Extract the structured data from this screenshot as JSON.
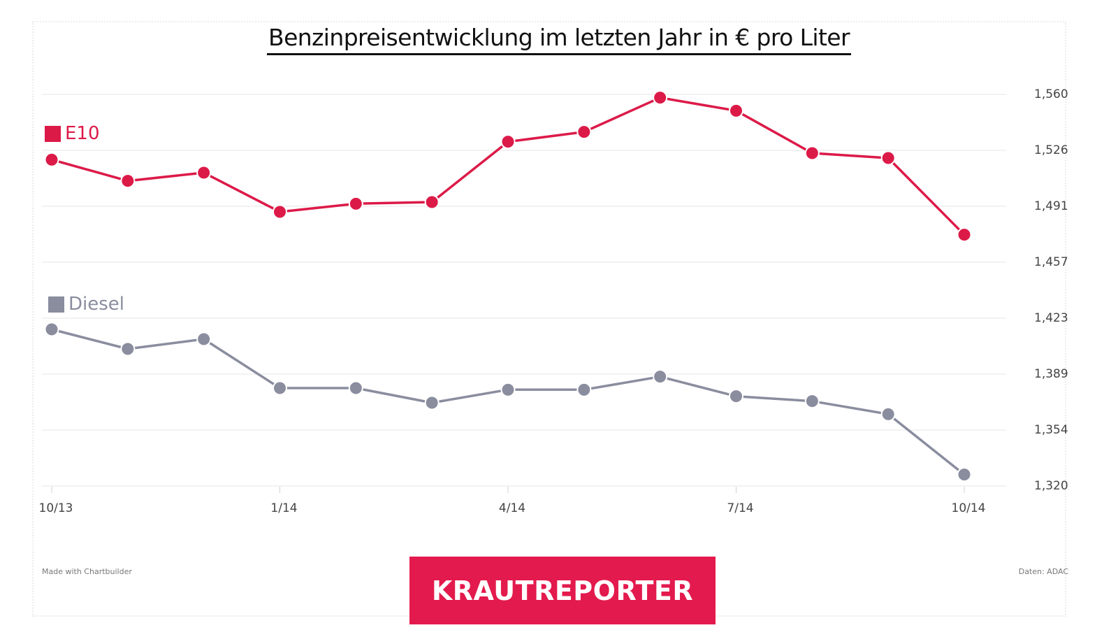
{
  "title": "Benzinpreisentwicklung im letzten Jahr in € pro Liter",
  "footer": {
    "made_with": "Made with Chartbuilder",
    "source": "Daten: ADAC",
    "brand": "KRAUTREPORTER"
  },
  "colors": {
    "e10": "#dc1a48",
    "diesel": "#8a8d9e",
    "brand_bg": "#e31a4d",
    "grid": "#e4e4e4",
    "axis_text": "#444444"
  },
  "chart_data": {
    "type": "line",
    "title": "Benzinpreisentwicklung im letzten Jahr in € pro Liter",
    "xlabel": "",
    "ylabel": "",
    "x_ticks": [
      "10/13",
      "1/14",
      "4/14",
      "7/14",
      "10/14"
    ],
    "y_ticks": [
      "1,560",
      "1,526",
      "1,491",
      "1,457",
      "1,423",
      "1,389",
      "1,354",
      "1,320"
    ],
    "ylim": [
      1.32,
      1.56
    ],
    "y_axis_side": "right",
    "grid": true,
    "legend": "inline-left",
    "x": [
      "2013-10",
      "2013-11",
      "2013-12",
      "2014-01",
      "2014-02",
      "2014-03",
      "2014-04",
      "2014-05",
      "2014-06",
      "2014-07",
      "2014-08",
      "2014-09",
      "2014-10"
    ],
    "series": [
      {
        "name": "E10",
        "color": "#dc1a48",
        "values": [
          1.52,
          1.507,
          1.512,
          1.488,
          1.493,
          1.494,
          1.531,
          1.537,
          1.558,
          1.55,
          1.524,
          1.521,
          1.474
        ]
      },
      {
        "name": "Diesel",
        "color": "#8a8d9e",
        "values": [
          1.416,
          1.404,
          1.41,
          1.38,
          1.38,
          1.371,
          1.379,
          1.379,
          1.387,
          1.375,
          1.372,
          1.364,
          1.327
        ]
      }
    ]
  }
}
